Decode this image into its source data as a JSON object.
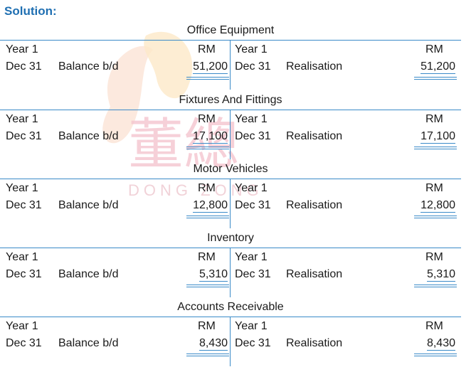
{
  "heading": {
    "label": "Solution",
    "colon": ":"
  },
  "watermark": {
    "chinese": "董總",
    "latin": "DONG ZONG"
  },
  "accounts": [
    {
      "title": "Office Equipment",
      "left": {
        "year": "Year 1",
        "unit": "RM",
        "date": "Dec 31",
        "desc": "Balance b/d",
        "amount": "51,200"
      },
      "right": {
        "year": "Year 1",
        "unit": "RM",
        "date": "Dec 31",
        "desc": "Realisation",
        "amount": "51,200"
      }
    },
    {
      "title": "Fixtures And Fittings",
      "left": {
        "year": "Year 1",
        "unit": "RM",
        "date": "Dec 31",
        "desc": "Balance b/d",
        "amount": "17,100"
      },
      "right": {
        "year": "Year 1",
        "unit": "RM",
        "date": "Dec 31",
        "desc": "Realisation",
        "amount": "17,100"
      }
    },
    {
      "title": "Motor Vehicles",
      "left": {
        "year": "Year 1",
        "unit": "RM",
        "date": "Dec 31",
        "desc": "Balance b/d",
        "amount": "12,800"
      },
      "right": {
        "year": "Year 1",
        "unit": "RM",
        "date": "Dec 31",
        "desc": "Realisation",
        "amount": "12,800"
      }
    },
    {
      "title": "Inventory",
      "left": {
        "year": "Year 1",
        "unit": "RM",
        "date": "Dec 31",
        "desc": "Balance b/d",
        "amount": "5,310"
      },
      "right": {
        "year": "Year 1",
        "unit": "RM",
        "date": "Dec 31",
        "desc": "Realisation",
        "amount": "5,310"
      }
    },
    {
      "title": "Accounts Receivable",
      "left": {
        "year": "Year 1",
        "unit": "RM",
        "date": "Dec 31",
        "desc": "Balance b/d",
        "amount": "8,430"
      },
      "right": {
        "year": "Year 1",
        "unit": "RM",
        "date": "Dec 31",
        "desc": "Realisation",
        "amount": "8,430"
      }
    }
  ],
  "colors": {
    "heading": "#1f6fb2",
    "rule": "#3a8ac8",
    "text": "#1a1a1a"
  }
}
